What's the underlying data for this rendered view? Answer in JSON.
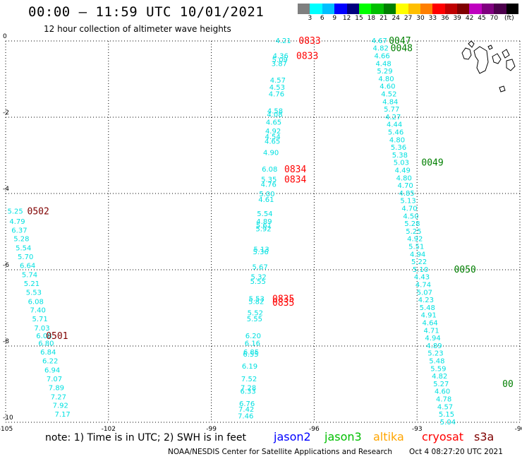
{
  "header": {
    "title": "00:00 – 11:59 UTC 10/01/2021",
    "subtitle": "12 hour collection of altimeter wave heights"
  },
  "colorbar": {
    "colors": [
      "#7f7f7f",
      "#00ffff",
      "#00bfff",
      "#0000ff",
      "#00007f",
      "#00ff00",
      "#00bf00",
      "#007f00",
      "#ffff00",
      "#ffbf00",
      "#ff7f00",
      "#ff0000",
      "#bf0000",
      "#7f0000",
      "#bf00bf",
      "#7f007f",
      "#4c004c",
      "#000000"
    ],
    "labels": [
      "3",
      "6",
      "9",
      "12",
      "15",
      "18",
      "21",
      "24",
      "27",
      "30",
      "33",
      "36",
      "39",
      "42",
      "45",
      "70",
      "(ft)"
    ]
  },
  "map": {
    "lon_range": [
      -105,
      -90
    ],
    "lat_range": [
      -10,
      0
    ],
    "x_ticks": [
      -105,
      -102,
      -99,
      -96,
      -93,
      -90
    ],
    "y_ticks": [
      0,
      -2,
      -4,
      -6,
      -8,
      -10
    ],
    "x_tick_labels": [
      "-105",
      "-102",
      "-99",
      "-96",
      "-93",
      "-90"
    ],
    "y_tick_labels": [
      "0",
      "-2",
      "-4",
      "-6",
      "-8",
      "-10"
    ]
  },
  "tracks": [
    {
      "satellite": "cryosat",
      "color": "#00e0e0",
      "points": [
        {
          "lon": -104.72,
          "lat": -4.45,
          "value": "5.25"
        },
        {
          "lon": -104.66,
          "lat": -4.72,
          "value": "4.79"
        },
        {
          "lon": -104.6,
          "lat": -4.95,
          "value": "6.37"
        },
        {
          "lon": -104.54,
          "lat": -5.18,
          "value": "5.28"
        },
        {
          "lon": -104.48,
          "lat": -5.42,
          "value": "5.54"
        },
        {
          "lon": -104.42,
          "lat": -5.65,
          "value": "5.70"
        },
        {
          "lon": -104.36,
          "lat": -5.88,
          "value": "6.64"
        },
        {
          "lon": -104.3,
          "lat": -6.12,
          "value": "5.74"
        },
        {
          "lon": -104.24,
          "lat": -6.35,
          "value": "5.21"
        },
        {
          "lon": -104.18,
          "lat": -6.58,
          "value": "5.53"
        },
        {
          "lon": -104.12,
          "lat": -6.82,
          "value": "6.08"
        },
        {
          "lon": -104.06,
          "lat": -7.05,
          "value": "7.40"
        },
        {
          "lon": -104.0,
          "lat": -7.28,
          "value": "5.71"
        },
        {
          "lon": -103.94,
          "lat": -7.52,
          "value": "7.03"
        },
        {
          "lon": -103.88,
          "lat": -7.72,
          "value": "6.08"
        },
        {
          "lon": -103.82,
          "lat": -7.92,
          "value": "6.80"
        },
        {
          "lon": -103.76,
          "lat": -8.15,
          "value": "6.84"
        },
        {
          "lon": -103.7,
          "lat": -8.38,
          "value": "6.22"
        },
        {
          "lon": -103.64,
          "lat": -8.62,
          "value": "6.94"
        },
        {
          "lon": -103.58,
          "lat": -8.85,
          "value": "7.07"
        },
        {
          "lon": -103.52,
          "lat": -9.08,
          "value": "7.89"
        },
        {
          "lon": -103.46,
          "lat": -9.32,
          "value": "7.27"
        },
        {
          "lon": -103.4,
          "lat": -9.55,
          "value": "7.92"
        },
        {
          "lon": -103.34,
          "lat": -9.78,
          "value": "7.17"
        }
      ],
      "time_labels": [
        {
          "lon": -104.05,
          "lat": -4.45,
          "text": "0502",
          "color": "#7f0000"
        },
        {
          "lon": -103.5,
          "lat": -7.72,
          "text": "0501",
          "color": "#7f0000"
        }
      ]
    },
    {
      "satellite": "cryosat",
      "color": "#00e0e0",
      "points": [
        {
          "lon": -96.9,
          "lat": 0.02,
          "value": "4.21"
        },
        {
          "lon": -96.98,
          "lat": -0.38,
          "value": "4.36"
        },
        {
          "lon": -97.0,
          "lat": -0.48,
          "value": "5.09"
        },
        {
          "lon": -97.02,
          "lat": -0.58,
          "value": "3.87"
        },
        {
          "lon": -97.06,
          "lat": -1.02,
          "value": "4.57"
        },
        {
          "lon": -97.08,
          "lat": -1.2,
          "value": "4.53"
        },
        {
          "lon": -97.1,
          "lat": -1.38,
          "value": "4.76"
        },
        {
          "lon": -97.14,
          "lat": -1.82,
          "value": "4.58"
        },
        {
          "lon": -97.15,
          "lat": -1.92,
          "value": "4.08"
        },
        {
          "lon": -97.18,
          "lat": -2.12,
          "value": "4.65"
        },
        {
          "lon": -97.2,
          "lat": -2.35,
          "value": "4.92"
        },
        {
          "lon": -97.21,
          "lat": -2.5,
          "value": "4.54"
        },
        {
          "lon": -97.22,
          "lat": -2.62,
          "value": "4.65"
        },
        {
          "lon": -97.26,
          "lat": -2.92,
          "value": "4.90"
        },
        {
          "lon": -97.3,
          "lat": -3.35,
          "value": "6.08"
        },
        {
          "lon": -97.32,
          "lat": -3.62,
          "value": "5.35"
        },
        {
          "lon": -97.33,
          "lat": -3.75,
          "value": "4.76"
        },
        {
          "lon": -97.38,
          "lat": -4.0,
          "value": "5.00"
        },
        {
          "lon": -97.4,
          "lat": -4.15,
          "value": "4.61"
        },
        {
          "lon": -97.44,
          "lat": -4.52,
          "value": "5.54"
        },
        {
          "lon": -97.46,
          "lat": -4.72,
          "value": "4.89"
        },
        {
          "lon": -97.47,
          "lat": -4.82,
          "value": "5.61"
        },
        {
          "lon": -97.48,
          "lat": -4.92,
          "value": "5.92"
        },
        {
          "lon": -97.54,
          "lat": -5.45,
          "value": "5.13"
        },
        {
          "lon": -97.56,
          "lat": -5.52,
          "value": "5.36"
        },
        {
          "lon": -97.58,
          "lat": -5.92,
          "value": "5.67"
        },
        {
          "lon": -97.62,
          "lat": -6.18,
          "value": "5.32"
        },
        {
          "lon": -97.64,
          "lat": -6.3,
          "value": "5.55"
        },
        {
          "lon": -97.68,
          "lat": -6.75,
          "value": "5.53"
        },
        {
          "lon": -97.69,
          "lat": -6.82,
          "value": "5.82"
        },
        {
          "lon": -97.72,
          "lat": -7.12,
          "value": "5.52"
        },
        {
          "lon": -97.74,
          "lat": -7.28,
          "value": "5.55"
        },
        {
          "lon": -97.78,
          "lat": -7.72,
          "value": "6.20"
        },
        {
          "lon": -97.8,
          "lat": -7.92,
          "value": "6.16"
        },
        {
          "lon": -97.84,
          "lat": -8.15,
          "value": "6.85"
        },
        {
          "lon": -97.85,
          "lat": -8.2,
          "value": "6.55"
        },
        {
          "lon": -97.88,
          "lat": -8.52,
          "value": "6.19"
        },
        {
          "lon": -97.9,
          "lat": -8.85,
          "value": "7.52"
        },
        {
          "lon": -97.92,
          "lat": -9.08,
          "value": "7.28"
        },
        {
          "lon": -97.93,
          "lat": -9.18,
          "value": "6.33"
        },
        {
          "lon": -97.96,
          "lat": -9.5,
          "value": "6.76"
        },
        {
          "lon": -97.98,
          "lat": -9.65,
          "value": "7.42"
        },
        {
          "lon": -98.0,
          "lat": -9.82,
          "value": "7.46"
        }
      ],
      "time_labels": [
        {
          "lon": -96.13,
          "lat": 0.02,
          "text": "0833",
          "color": "#ff0000"
        },
        {
          "lon": -96.2,
          "lat": -0.38,
          "text": "0833",
          "color": "#ff0000"
        },
        {
          "lon": -96.55,
          "lat": -3.35,
          "text": "0834",
          "color": "#ff0000"
        },
        {
          "lon": -96.55,
          "lat": -3.62,
          "text": "0834",
          "color": "#ff0000"
        },
        {
          "lon": -96.9,
          "lat": -6.75,
          "text": "0835",
          "color": "#ff0000"
        },
        {
          "lon": -96.9,
          "lat": -6.85,
          "text": "0835",
          "color": "#ff0000"
        }
      ]
    },
    {
      "satellite": "jason3",
      "color": "#00e0e0",
      "points": [
        {
          "lon": -94.1,
          "lat": 0.02,
          "value": "4.67"
        },
        {
          "lon": -94.06,
          "lat": -0.18,
          "value": "4.82"
        },
        {
          "lon": -94.02,
          "lat": -0.38,
          "value": "4.66"
        },
        {
          "lon": -93.98,
          "lat": -0.58,
          "value": "4.48"
        },
        {
          "lon": -93.94,
          "lat": -0.78,
          "value": "5.29"
        },
        {
          "lon": -93.9,
          "lat": -0.98,
          "value": "4.80"
        },
        {
          "lon": -93.86,
          "lat": -1.18,
          "value": "4.60"
        },
        {
          "lon": -93.82,
          "lat": -1.38,
          "value": "4.52"
        },
        {
          "lon": -93.78,
          "lat": -1.58,
          "value": "4.84"
        },
        {
          "lon": -93.74,
          "lat": -1.78,
          "value": "5.77"
        },
        {
          "lon": -93.7,
          "lat": -1.98,
          "value": "4.27"
        },
        {
          "lon": -93.66,
          "lat": -2.18,
          "value": "4.44"
        },
        {
          "lon": -93.62,
          "lat": -2.38,
          "value": "5.46"
        },
        {
          "lon": -93.58,
          "lat": -2.58,
          "value": "4.80"
        },
        {
          "lon": -93.54,
          "lat": -2.78,
          "value": "5.36"
        },
        {
          "lon": -93.5,
          "lat": -2.98,
          "value": "5.38"
        },
        {
          "lon": -93.46,
          "lat": -3.18,
          "value": "5.03"
        },
        {
          "lon": -93.42,
          "lat": -3.38,
          "value": "4.49"
        },
        {
          "lon": -93.38,
          "lat": -3.58,
          "value": "4.80"
        },
        {
          "lon": -93.34,
          "lat": -3.78,
          "value": "4.70"
        },
        {
          "lon": -93.3,
          "lat": -3.98,
          "value": "4.85"
        },
        {
          "lon": -93.26,
          "lat": -4.18,
          "value": "5.13"
        },
        {
          "lon": -93.22,
          "lat": -4.38,
          "value": "4.70"
        },
        {
          "lon": -93.18,
          "lat": -4.58,
          "value": "4.50"
        },
        {
          "lon": -93.14,
          "lat": -4.78,
          "value": "5.28"
        },
        {
          "lon": -93.1,
          "lat": -4.98,
          "value": "5.25"
        },
        {
          "lon": -93.06,
          "lat": -5.18,
          "value": "4.92"
        },
        {
          "lon": -93.02,
          "lat": -5.38,
          "value": "5.51"
        },
        {
          "lon": -92.98,
          "lat": -5.58,
          "value": "4.94"
        },
        {
          "lon": -92.94,
          "lat": -5.78,
          "value": "5.22"
        },
        {
          "lon": -92.9,
          "lat": -5.98,
          "value": "5.10"
        },
        {
          "lon": -92.86,
          "lat": -6.18,
          "value": "4.43"
        },
        {
          "lon": -92.82,
          "lat": -6.38,
          "value": "4.74"
        },
        {
          "lon": -92.78,
          "lat": -6.58,
          "value": "5.07"
        },
        {
          "lon": -92.74,
          "lat": -6.78,
          "value": "4.23"
        },
        {
          "lon": -92.7,
          "lat": -6.98,
          "value": "5.48"
        },
        {
          "lon": -92.66,
          "lat": -7.18,
          "value": "4.91"
        },
        {
          "lon": -92.62,
          "lat": -7.38,
          "value": "4.64"
        },
        {
          "lon": -92.58,
          "lat": -7.58,
          "value": "4.71"
        },
        {
          "lon": -92.54,
          "lat": -7.78,
          "value": "4.94"
        },
        {
          "lon": -92.5,
          "lat": -7.98,
          "value": "4.89"
        },
        {
          "lon": -92.46,
          "lat": -8.18,
          "value": "5.23"
        },
        {
          "lon": -92.42,
          "lat": -8.38,
          "value": "5.48"
        },
        {
          "lon": -92.38,
          "lat": -8.58,
          "value": "5.59"
        },
        {
          "lon": -92.34,
          "lat": -8.78,
          "value": "4.82"
        },
        {
          "lon": -92.3,
          "lat": -8.98,
          "value": "5.27"
        },
        {
          "lon": -92.26,
          "lat": -9.18,
          "value": "4.60"
        },
        {
          "lon": -92.22,
          "lat": -9.38,
          "value": "4.78"
        },
        {
          "lon": -92.18,
          "lat": -9.58,
          "value": "4.57"
        },
        {
          "lon": -92.14,
          "lat": -9.78,
          "value": "5.15"
        },
        {
          "lon": -92.1,
          "lat": -9.98,
          "value": "5.04"
        }
      ],
      "time_labels": [
        {
          "lon": -93.5,
          "lat": 0.02,
          "text": "0047",
          "color": "#007f00"
        },
        {
          "lon": -93.45,
          "lat": -0.18,
          "text": "0048",
          "color": "#007f00"
        },
        {
          "lon": -92.55,
          "lat": -3.18,
          "text": "0049",
          "color": "#007f00"
        },
        {
          "lon": -91.6,
          "lat": -5.98,
          "text": "0050",
          "color": "#007f00"
        },
        {
          "lon": -90.35,
          "lat": -8.98,
          "text": "00",
          "color": "#007f00"
        }
      ]
    }
  ],
  "legend": {
    "note": "note: 1) Time is in UTC; 2) SWH is in feet",
    "satellites": [
      {
        "name": "jason2",
        "color": "#0000ff"
      },
      {
        "name": "jason3",
        "color": "#00bf00"
      },
      {
        "name": "altika",
        "color": "#ffa500"
      },
      {
        "name": "cryosat",
        "color": "#ff0000"
      },
      {
        "name": "s3a",
        "color": "#7f0000"
      }
    ]
  },
  "footer": {
    "credit": "NOAA/NESDIS Center for Satellite Applications and Research",
    "generated": "Oct  4 08:27:20 UTC 2021"
  }
}
